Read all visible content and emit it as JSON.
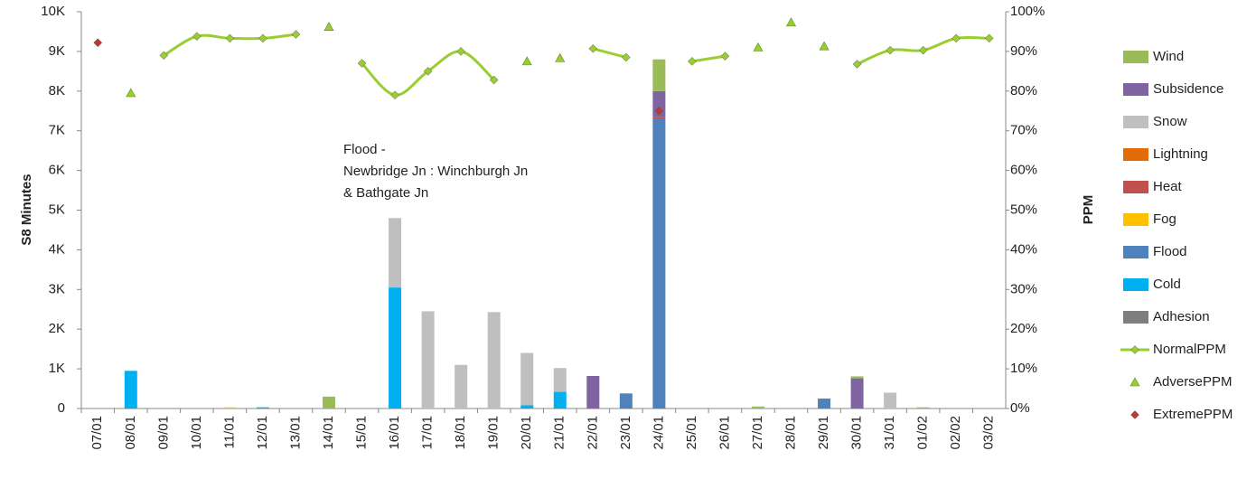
{
  "chart_data": {
    "type": "bar",
    "y_label": "S8 Minutes",
    "y2_label": "PPM",
    "annotation": [
      "Flood -",
      "Newbridge Jn : Winchburgh Jn",
      "& Bathgate Jn"
    ],
    "categories": [
      "07/01",
      "08/01",
      "09/01",
      "10/01",
      "11/01",
      "12/01",
      "13/01",
      "14/01",
      "15/01",
      "16/01",
      "17/01",
      "18/01",
      "19/01",
      "20/01",
      "21/01",
      "22/01",
      "23/01",
      "24/01",
      "25/01",
      "26/01",
      "27/01",
      "28/01",
      "29/01",
      "30/01",
      "31/01",
      "01/02",
      "02/02",
      "03/02"
    ],
    "ylim": [
      0,
      10000
    ],
    "yticks": [
      {
        "value": 0,
        "label": "0"
      },
      {
        "value": 1000,
        "label": "1K"
      },
      {
        "value": 2000,
        "label": "2K"
      },
      {
        "value": 3000,
        "label": "3K"
      },
      {
        "value": 4000,
        "label": "4K"
      },
      {
        "value": 5000,
        "label": "5K"
      },
      {
        "value": 6000,
        "label": "6K"
      },
      {
        "value": 7000,
        "label": "7K"
      },
      {
        "value": 8000,
        "label": "8K"
      },
      {
        "value": 9000,
        "label": "9K"
      },
      {
        "value": 10000,
        "label": "10K"
      }
    ],
    "y2lim": [
      0,
      100
    ],
    "y2ticks": [
      {
        "value": 0,
        "label": "0%"
      },
      {
        "value": 10,
        "label": "10%"
      },
      {
        "value": 20,
        "label": "20%"
      },
      {
        "value": 30,
        "label": "30%"
      },
      {
        "value": 40,
        "label": "40%"
      },
      {
        "value": 50,
        "label": "50%"
      },
      {
        "value": 60,
        "label": "60%"
      },
      {
        "value": 70,
        "label": "70%"
      },
      {
        "value": 80,
        "label": "80%"
      },
      {
        "value": 90,
        "label": "90%"
      },
      {
        "value": 100,
        "label": "100%"
      }
    ],
    "series": [
      {
        "name": "Adhesion",
        "kind": "bar",
        "color": "#7f7f7f",
        "values": [
          0,
          0,
          0,
          0,
          0,
          0,
          0,
          0,
          0,
          0,
          0,
          0,
          0,
          0,
          0,
          0,
          0,
          0,
          0,
          0,
          0,
          0,
          0,
          0,
          0,
          0,
          0,
          0
        ]
      },
      {
        "name": "Cold",
        "kind": "bar",
        "color": "#00b0f0",
        "values": [
          0,
          950,
          0,
          0,
          0,
          30,
          0,
          0,
          0,
          3050,
          0,
          0,
          0,
          80,
          420,
          0,
          0,
          0,
          0,
          0,
          0,
          0,
          0,
          0,
          0,
          0,
          0,
          0
        ]
      },
      {
        "name": "Flood",
        "kind": "bar",
        "color": "#4f81bd",
        "values": [
          0,
          0,
          0,
          0,
          0,
          0,
          0,
          0,
          0,
          0,
          0,
          0,
          0,
          0,
          0,
          0,
          380,
          7300,
          0,
          0,
          0,
          0,
          250,
          0,
          0,
          0,
          0,
          0
        ]
      },
      {
        "name": "Fog",
        "kind": "bar",
        "color": "#ffc000",
        "values": [
          0,
          0,
          0,
          0,
          30,
          0,
          0,
          0,
          0,
          0,
          0,
          0,
          0,
          0,
          0,
          0,
          0,
          0,
          0,
          0,
          0,
          0,
          0,
          0,
          0,
          0,
          0,
          0
        ]
      },
      {
        "name": "Heat",
        "kind": "bar",
        "color": "#c0504d",
        "values": [
          0,
          0,
          0,
          0,
          0,
          0,
          0,
          0,
          0,
          0,
          0,
          0,
          0,
          0,
          0,
          0,
          0,
          50,
          0,
          0,
          0,
          0,
          0,
          0,
          0,
          0,
          0,
          0
        ]
      },
      {
        "name": "Lightning",
        "kind": "bar",
        "color": "#e36c09",
        "values": [
          0,
          0,
          0,
          0,
          0,
          0,
          0,
          0,
          0,
          0,
          0,
          0,
          0,
          0,
          0,
          0,
          0,
          0,
          0,
          0,
          0,
          0,
          0,
          0,
          0,
          0,
          0,
          0
        ]
      },
      {
        "name": "Snow",
        "kind": "bar",
        "color": "#bfbfbf",
        "values": [
          0,
          0,
          0,
          0,
          0,
          0,
          0,
          0,
          0,
          1750,
          2450,
          1100,
          2430,
          1320,
          600,
          0,
          0,
          0,
          0,
          0,
          0,
          0,
          0,
          0,
          400,
          0,
          0,
          0
        ]
      },
      {
        "name": "Subsidence",
        "kind": "bar",
        "color": "#8064a2",
        "values": [
          0,
          0,
          0,
          0,
          0,
          0,
          0,
          0,
          0,
          0,
          0,
          0,
          0,
          0,
          0,
          820,
          0,
          650,
          0,
          0,
          0,
          0,
          0,
          760,
          0,
          0,
          0,
          0
        ]
      },
      {
        "name": "Wind",
        "kind": "bar",
        "color": "#9bbb59",
        "values": [
          0,
          0,
          0,
          0,
          0,
          0,
          0,
          300,
          0,
          0,
          0,
          0,
          0,
          0,
          0,
          0,
          0,
          800,
          0,
          0,
          50,
          0,
          0,
          50,
          0,
          30,
          0,
          0
        ]
      },
      {
        "name": "NormalPPM",
        "kind": "line",
        "marker": "diamond",
        "axis": "y2",
        "color": "#9acd32",
        "values": [
          null,
          null,
          89,
          93.8,
          93.3,
          93.3,
          94.3,
          null,
          87,
          79,
          85,
          90,
          82.8,
          null,
          null,
          90.7,
          88.5,
          null,
          87.5,
          88.8,
          null,
          null,
          null,
          86.8,
          90.3,
          90.3,
          93.3,
          93.3
        ]
      },
      {
        "name": "AdversePPM",
        "kind": "marker",
        "marker": "triangle",
        "axis": "y2",
        "color": "#9acd32",
        "values": [
          null,
          79.5,
          null,
          null,
          null,
          null,
          null,
          96.2,
          null,
          null,
          null,
          null,
          null,
          87.5,
          88.3,
          null,
          null,
          null,
          null,
          null,
          91,
          97.3,
          91.3,
          null,
          null,
          null,
          null,
          null
        ]
      },
      {
        "name": "ExtremePPM",
        "kind": "marker",
        "marker": "diamond",
        "axis": "y2",
        "color": "#c0392b",
        "values": [
          92.2,
          null,
          null,
          null,
          null,
          null,
          null,
          null,
          null,
          null,
          null,
          null,
          null,
          null,
          null,
          null,
          null,
          75,
          null,
          null,
          null,
          null,
          null,
          null,
          null,
          null,
          null,
          null
        ]
      }
    ]
  }
}
